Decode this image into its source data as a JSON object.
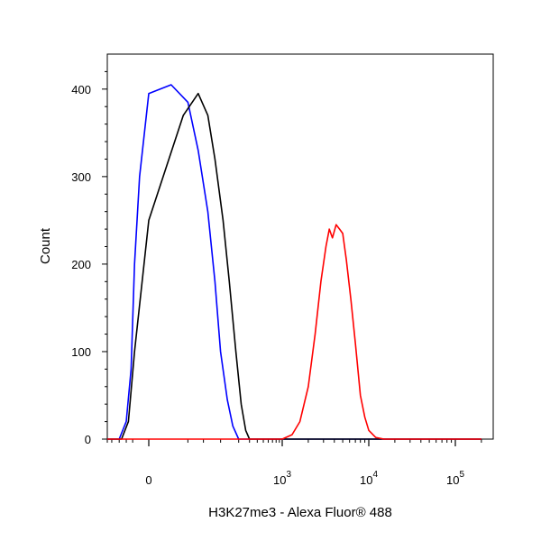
{
  "chart_data": {
    "type": "line",
    "title": "",
    "xlabel": "H3K27me3 - Alexa Fluor® 488",
    "ylabel": "Count",
    "x_scale": "biexponential",
    "xlim": [
      -300,
      200000
    ],
    "ylim": [
      0,
      440
    ],
    "grid": false,
    "legend": "none",
    "x_ticks": [
      {
        "value": 0,
        "base": "0",
        "exp": ""
      },
      {
        "value": 1000,
        "base": "10",
        "exp": "3"
      },
      {
        "value": 10000,
        "base": "10",
        "exp": "4"
      },
      {
        "value": 100000,
        "base": "10",
        "exp": "5"
      }
    ],
    "y_ticks": [
      0,
      100,
      200,
      300,
      400
    ],
    "series": [
      {
        "color": "#0000ff",
        "x": [
          -300,
          -100,
          -50,
          -30,
          -20,
          -10,
          0,
          10,
          25,
          40,
          60,
          80,
          100,
          130,
          160,
          200,
          1000,
          10000,
          200000
        ],
        "y": [
          0,
          0,
          20,
          80,
          200,
          300,
          395,
          405,
          385,
          330,
          260,
          180,
          100,
          45,
          15,
          0,
          0,
          0,
          0
        ]
      },
      {
        "color": "#000000",
        "x": [
          -300,
          -80,
          -40,
          -20,
          0,
          20,
          40,
          60,
          80,
          110,
          140,
          180,
          220,
          260,
          300,
          1000,
          10000,
          200000
        ],
        "y": [
          0,
          0,
          20,
          100,
          250,
          370,
          395,
          370,
          320,
          250,
          180,
          100,
          40,
          10,
          0,
          0,
          0,
          0
        ]
      },
      {
        "color": "#ff0000",
        "x": [
          -300,
          1000,
          1300,
          1600,
          2000,
          2400,
          2800,
          3200,
          3500,
          3800,
          4200,
          4600,
          5000,
          5500,
          6200,
          7000,
          8000,
          9000,
          10000,
          12000,
          15000,
          200000
        ],
        "y": [
          0,
          0,
          5,
          20,
          60,
          120,
          180,
          220,
          240,
          230,
          245,
          240,
          235,
          205,
          160,
          110,
          50,
          25,
          10,
          2,
          0,
          0
        ]
      }
    ]
  }
}
